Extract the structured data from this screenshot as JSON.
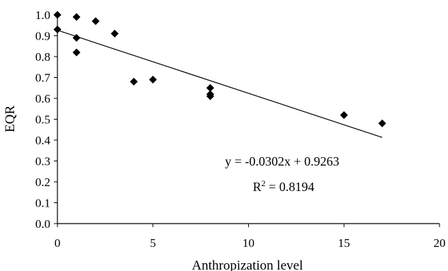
{
  "chart_data": {
    "type": "scatter",
    "xlabel": "Anthropization level",
    "ylabel": "EQR",
    "xlim": [
      0,
      20
    ],
    "ylim": [
      0,
      1.0
    ],
    "x_ticks": [
      0,
      5,
      10,
      15,
      20
    ],
    "y_ticks": [
      0.0,
      0.1,
      0.2,
      0.3,
      0.4,
      0.5,
      0.6,
      0.7,
      0.8,
      0.9,
      1.0
    ],
    "x_tick_labels": [
      "0",
      "5",
      "10",
      "15",
      "20"
    ],
    "y_tick_labels": [
      "0.0",
      "0.1",
      "0.2",
      "0.3",
      "0.4",
      "0.5",
      "0.6",
      "0.7",
      "0.8",
      "0.9",
      "1.0"
    ],
    "grid": false,
    "marker": "diamond",
    "marker_color": "#000000",
    "points": [
      {
        "x": 0,
        "y": 1.0
      },
      {
        "x": 0,
        "y": 0.93
      },
      {
        "x": 1,
        "y": 0.99
      },
      {
        "x": 1,
        "y": 0.89
      },
      {
        "x": 1,
        "y": 0.82
      },
      {
        "x": 2,
        "y": 0.97
      },
      {
        "x": 3,
        "y": 0.91
      },
      {
        "x": 4,
        "y": 0.68
      },
      {
        "x": 5,
        "y": 0.69
      },
      {
        "x": 8,
        "y": 0.65
      },
      {
        "x": 8,
        "y": 0.62
      },
      {
        "x": 8,
        "y": 0.61
      },
      {
        "x": 15,
        "y": 0.52
      },
      {
        "x": 17,
        "y": 0.48
      }
    ],
    "trendline": {
      "type": "linear",
      "slope": -0.0302,
      "intercept": 0.9263,
      "x_range": [
        0,
        17
      ],
      "equation_text": "y = -0.0302x + 0.9263",
      "r2_prefix": "R",
      "r2_sup": "2",
      "r2_suffix": " = 0.8194"
    }
  }
}
